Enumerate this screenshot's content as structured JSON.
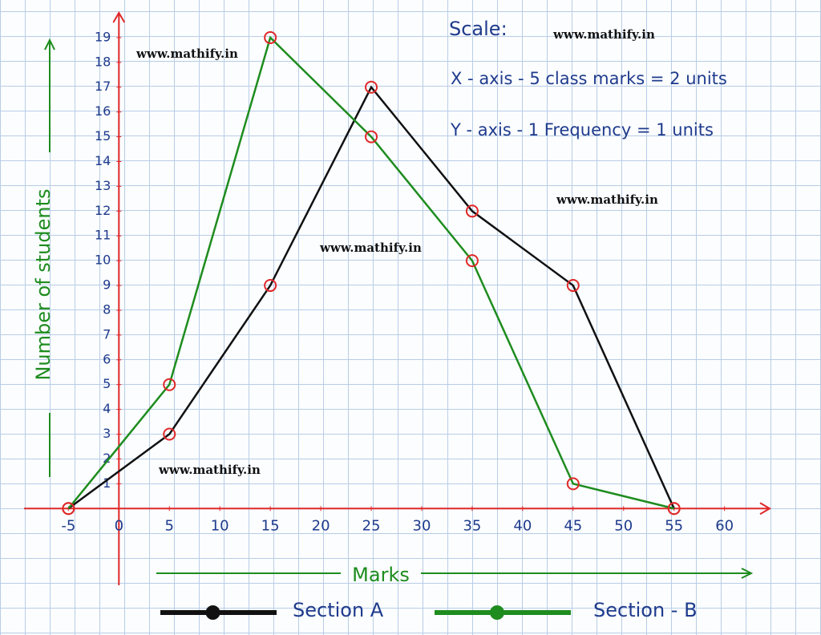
{
  "chart_data": {
    "type": "line",
    "annotations": [
      "Scale:",
      "X - axis - 5 class marks = 2 units",
      "Y - axis - 1 Frequency = 1 units"
    ],
    "watermarks": [
      "www.mathify.in",
      "www.mathify.in",
      "www.mathify.in",
      "www.mathify.in",
      "www.mathify.in"
    ],
    "x_label": "Marks",
    "y_label": "Number of students",
    "x": [
      -5,
      5,
      15,
      25,
      35,
      45,
      55
    ],
    "series": [
      {
        "name": "Section A",
        "color": "#111111",
        "values": [
          0,
          3,
          9,
          17,
          12,
          9,
          0
        ]
      },
      {
        "name": "Section - B",
        "color": "#1e8c1e",
        "values": [
          0,
          5,
          19,
          15,
          10,
          1,
          0
        ]
      }
    ],
    "xlim": [
      -9,
      64
    ],
    "xticks": [
      -5,
      0,
      5,
      10,
      15,
      20,
      25,
      30,
      35,
      40,
      45,
      50,
      55,
      60
    ],
    "ylim": [
      -3,
      20
    ],
    "yticks": [
      1,
      2,
      3,
      4,
      5,
      6,
      7,
      8,
      9,
      10,
      11,
      12,
      13,
      14,
      15,
      16,
      17,
      18,
      19
    ],
    "axis_color": "#e02828",
    "marker_color": "#e02828",
    "label_color": "#1e8c1e",
    "text_color": "#1f3b8c"
  }
}
